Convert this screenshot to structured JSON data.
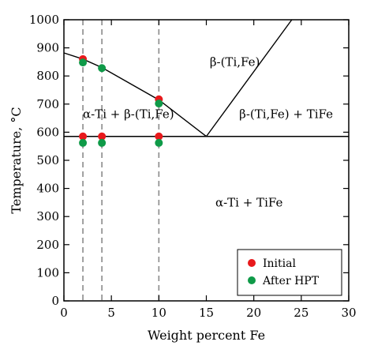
{
  "chart_data": {
    "type": "scatter",
    "xlabel": "Weight percent Fe",
    "ylabel": "Temperature, °C",
    "xlim": [
      0,
      30
    ],
    "ylim": [
      0,
      1000
    ],
    "xticks": [
      0,
      5,
      10,
      15,
      20,
      25,
      30
    ],
    "yticks": [
      0,
      100,
      200,
      300,
      400,
      500,
      600,
      700,
      800,
      900,
      1000
    ],
    "x_tick_labels": [
      "0",
      "5",
      "10",
      "15",
      "20",
      "25",
      "30"
    ],
    "y_tick_labels": [
      "0",
      "100",
      "200",
      "300",
      "400",
      "500",
      "600",
      "700",
      "800",
      "900",
      "1000"
    ],
    "phase_boundaries": [
      {
        "x": [
          0,
          2,
          4,
          10,
          15
        ],
        "y": [
          882,
          860,
          830,
          715,
          585
        ]
      },
      {
        "x": [
          15,
          24
        ],
        "y": [
          585,
          1000
        ]
      },
      {
        "x": [
          0,
          30
        ],
        "y": [
          585,
          585
        ]
      }
    ],
    "reference_lines_x": [
      2,
      4,
      10
    ],
    "region_labels": [
      {
        "text": "β-(Ti,Fe)",
        "x": 18,
        "y": 835
      },
      {
        "text": "α-Ti + β-(Ti,Fe)",
        "x": 6.8,
        "y": 650
      },
      {
        "text": "β-(Ti,Fe) + TiFe",
        "x": 23.4,
        "y": 650
      },
      {
        "text": "α-Ti + TiFe",
        "x": 19.5,
        "y": 335
      }
    ],
    "series": [
      {
        "name": "Initial",
        "color": "#e8191c",
        "points": [
          {
            "x": 2,
            "y": 860
          },
          {
            "x": 10,
            "y": 717
          },
          {
            "x": 2,
            "y": 585
          },
          {
            "x": 4,
            "y": 585
          },
          {
            "x": 10,
            "y": 585
          }
        ]
      },
      {
        "name": "After HPT",
        "color": "#0f9a48",
        "points": [
          {
            "x": 2,
            "y": 848
          },
          {
            "x": 4,
            "y": 828
          },
          {
            "x": 10,
            "y": 702
          },
          {
            "x": 2,
            "y": 562
          },
          {
            "x": 4,
            "y": 562
          },
          {
            "x": 10,
            "y": 562
          }
        ]
      }
    ],
    "legend_position": "bottom-right",
    "grid": false
  }
}
